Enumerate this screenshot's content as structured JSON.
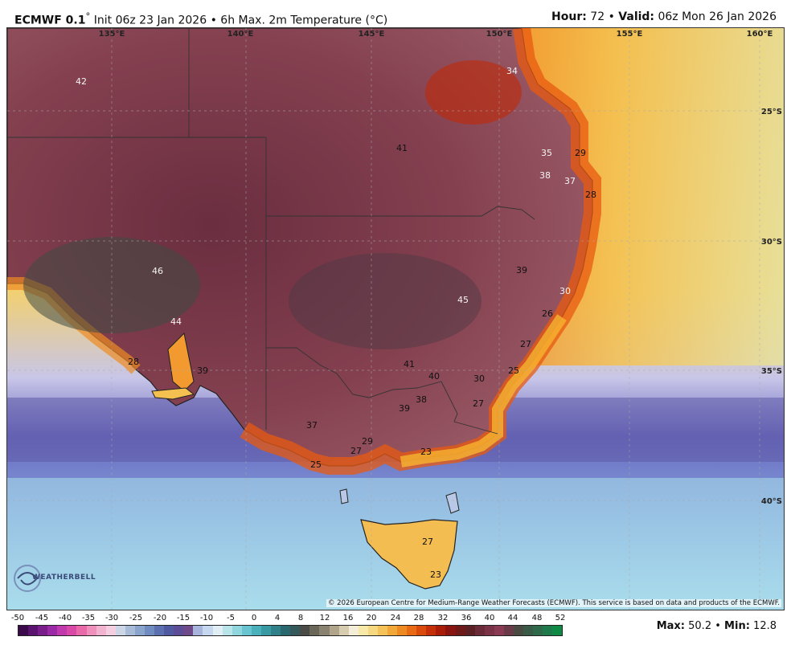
{
  "header": {
    "model": "ECMWF 0.1",
    "degree": "°",
    "init_text": "Init 06z 23 Jan 2026",
    "bullet": "•",
    "product": "6h Max. 2m Temperature (°C)",
    "hour_label": "Hour:",
    "hour_value": "72",
    "valid_label": "Valid:",
    "valid_value": "06z Mon 26 Jan 2026"
  },
  "map": {
    "longitude_labels": [
      "135°E",
      "140°E",
      "145°E",
      "150°E",
      "155°E",
      "160°E"
    ],
    "latitude_labels": [
      "25°S",
      "30°S",
      "35°S",
      "40°S"
    ],
    "temperature_values": [
      "42",
      "34",
      "41",
      "35",
      "29",
      "38",
      "37",
      "28",
      "46",
      "39",
      "30",
      "44",
      "45",
      "26",
      "28",
      "39",
      "27",
      "41",
      "40",
      "30",
      "25",
      "38",
      "27",
      "39",
      "37",
      "29",
      "27",
      "23",
      "25",
      "27",
      "23"
    ]
  },
  "copyright": "© 2026 European Centre for Medium-Range Weather Forecasts (ECMWF). This service is based on data and products of the ECMWF.",
  "logo_text": "WEATHERBELL",
  "colorbar": {
    "tick_labels": [
      "-50",
      "-45",
      "-40",
      "-35",
      "-30",
      "-25",
      "-20",
      "-15",
      "-10",
      "-5",
      "0",
      "4",
      "8",
      "12",
      "16",
      "20",
      "24",
      "28",
      "32",
      "36",
      "40",
      "44",
      "48",
      "52"
    ],
    "colors": [
      "#3b0a4a",
      "#5a1470",
      "#7a1e8c",
      "#9b2aa6",
      "#c03aae",
      "#d94aa8",
      "#e86aa8",
      "#ee8fbc",
      "#f2b3d0",
      "#f5cfe0",
      "#cdd6e6",
      "#a8bcd8",
      "#8aa4cc",
      "#6f8bc0",
      "#5c70b0",
      "#4f5aa0",
      "#5c4d96",
      "#6e4a8a",
      "#a8b4dc",
      "#c6d8ef",
      "#e2eef5",
      "#b8e4ea",
      "#8fd6de",
      "#68c4d0",
      "#4ab0bc",
      "#3a9aa4",
      "#2f8088",
      "#2a6870",
      "#35585a",
      "#4a4a46",
      "#6a6658",
      "#8a8270",
      "#b0a48a",
      "#d8ccb0",
      "#f4eed8",
      "#f8e9a8",
      "#f6d880",
      "#f4c258",
      "#f2a838",
      "#ee8a22",
      "#e86a14",
      "#da4a0c",
      "#c42e08",
      "#a81c08",
      "#8a1410",
      "#6e1a18",
      "#5a2024",
      "#6a2a38",
      "#7a3246",
      "#8a3a52",
      "#6a3a48",
      "#4a4a42",
      "#3a5a48",
      "#2e6a4a",
      "#1e7a4a",
      "#0e8a44"
    ]
  },
  "stats": {
    "max_label": "Max:",
    "max_value": "50.2",
    "min_label": "Min:",
    "min_value": "12.8"
  }
}
